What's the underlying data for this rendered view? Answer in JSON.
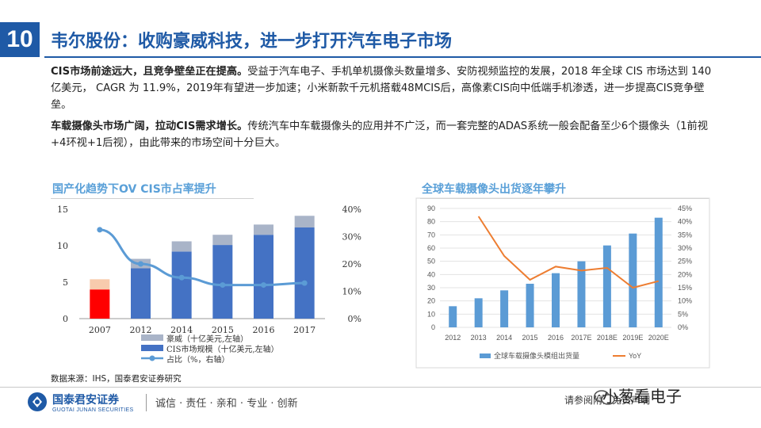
{
  "header": {
    "number": "10",
    "title": "韦尔股份：收购豪威科技，进一步打开汽车电子市场"
  },
  "paragraphs": [
    {
      "lead": "CIS市场前途远大，且竞争壁垒正在提高。",
      "body": "受益于汽车电子、手机单机摄像头数量增多、安防视频监控的发展，2018 年全球 CIS 市场达到 140 亿美元， CAGR 为 11.9%，2019年有望进一步加速；小米新款千元机搭载48MCIS后，高像素CIS向中低端手机渗透，进一步提高CIS竞争壁垒。"
    },
    {
      "lead": "车载摄像头市场广阔，拉动CIS需求增长。",
      "body": "传统汽车中车载摄像头的应用并不广泛，而一套完整的ADAS系统一般会配备至少6个摄像头（1前视+4环视+1后视），由此带来的市场空间十分巨大。"
    }
  ],
  "chart_titles": {
    "left": "国产化趋势下OV CIS市占率提升",
    "right": "全球车载摄像头出货逐年攀升"
  },
  "chart_data": [
    {
      "type": "bar",
      "title": "国产化趋势下OV CIS市占率提升",
      "categories": [
        "2007",
        "2012",
        "2014",
        "2015",
        "2016",
        "2017"
      ],
      "series": [
        {
          "name": "CIS市场规模（十亿美元,左轴）",
          "axis": "left",
          "stack": "a",
          "values": [
            4.0,
            6.9,
            9.2,
            10.1,
            11.5,
            12.5
          ],
          "color": "#4472c4"
        },
        {
          "name": "豪威（十亿美元,左轴）",
          "axis": "left",
          "stack": "a",
          "values": [
            1.4,
            1.3,
            1.4,
            1.4,
            1.4,
            1.6
          ],
          "color": "#a9b4c8"
        },
        {
          "name": "占比（%，右轴）",
          "axis": "right",
          "type": "line",
          "values": [
            32.5,
            20,
            15,
            12.3,
            12.3,
            13
          ],
          "color": "#5b9bd5"
        }
      ],
      "highlight": {
        "category": "2007",
        "colors": [
          "#ff0000",
          "#f8cbad"
        ]
      },
      "ylim_left": [
        0,
        15
      ],
      "yticks_left": [
        "0",
        "5",
        "10",
        "15"
      ],
      "ylim_right": [
        0,
        40
      ],
      "yticks_right": [
        "0%",
        "10%",
        "20%",
        "30%",
        "40%"
      ],
      "legend": [
        {
          "label": "豪威（十亿美元,左轴）",
          "kind": "bar",
          "color": "#a9b4c8"
        },
        {
          "label": "CIS市场规模（十亿美元,左轴）",
          "kind": "bar",
          "color": "#4472c4"
        },
        {
          "label": "占比（%，右轴）",
          "kind": "line",
          "color": "#5b9bd5"
        }
      ]
    },
    {
      "type": "bar",
      "title": "全球车载摄像头出货逐年攀升",
      "categories": [
        "2012",
        "2013",
        "2014",
        "2015",
        "2016",
        "2017E",
        "2018E",
        "2019E",
        "2020E"
      ],
      "series": [
        {
          "name": "全球车载摄像头模组出货量",
          "axis": "left",
          "values": [
            16,
            22,
            28,
            33,
            41,
            50,
            62,
            71,
            83
          ],
          "color": "#5b9bd5"
        },
        {
          "name": "YoY",
          "axis": "right",
          "type": "line",
          "values": [
            null,
            42,
            27,
            18,
            23,
            21.5,
            22.5,
            15,
            17.5
          ],
          "color": "#ed7d31"
        }
      ],
      "ylim_left": [
        0,
        90
      ],
      "yticks_left": [
        "0",
        "10",
        "20",
        "30",
        "40",
        "50",
        "60",
        "70",
        "80",
        "90"
      ],
      "ylim_right": [
        0,
        45
      ],
      "yticks_right": [
        "0%",
        "5%",
        "10%",
        "15%",
        "20%",
        "25%",
        "30%",
        "35%",
        "40%",
        "45%"
      ],
      "legend": [
        {
          "label": "全球车载摄像头模组出货量",
          "kind": "bar",
          "color": "#5b9bd5"
        },
        {
          "label": "YoY",
          "kind": "line",
          "color": "#ed7d31"
        }
      ]
    }
  ],
  "source": "数据来源：IHS，国泰君安证券研究",
  "footer": {
    "logo_cn": "国泰君安证券",
    "logo_en": "GUOTAI JUNAN SECURITIES",
    "slogan": "诚信 · 责任 · 亲和 · 专业 · 创新",
    "disclaimer": "请参阅附注免责声明",
    "watermark": "小葱看电子",
    "colors": {
      "brand": "#1f5aa6"
    }
  }
}
